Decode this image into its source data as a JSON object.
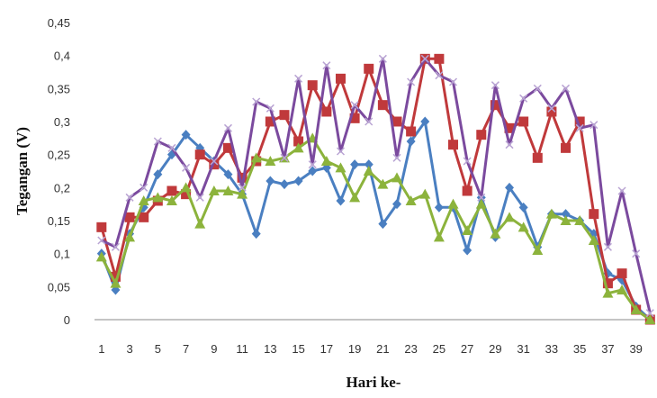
{
  "chart_data": {
    "type": "line",
    "xlabel": "Hari ke-",
    "ylabel": "Tegangan (V)",
    "ylim": [
      0,
      0.45
    ],
    "yticks": [
      "0",
      "0,05",
      "0,1",
      "0,15",
      "0,2",
      "0,25",
      "0,3",
      "0,35",
      "0,4",
      "0,45"
    ],
    "xticks": [
      "1",
      "3",
      "5",
      "7",
      "9",
      "11",
      "13",
      "15",
      "17",
      "19",
      "21",
      "23",
      "25",
      "27",
      "29",
      "31",
      "33",
      "35",
      "37",
      "39"
    ],
    "x": [
      1,
      2,
      3,
      4,
      5,
      6,
      7,
      8,
      9,
      10,
      11,
      12,
      13,
      14,
      15,
      16,
      17,
      18,
      19,
      20,
      21,
      22,
      23,
      24,
      25,
      26,
      27,
      28,
      29,
      30,
      31,
      32,
      33,
      34,
      35,
      36,
      37,
      38,
      39,
      40
    ],
    "grid": false,
    "legend": "none",
    "series": [
      {
        "color": "#4a7fc1",
        "marker": "diamond",
        "values": [
          0.1,
          0.045,
          0.13,
          0.17,
          0.22,
          0.25,
          0.28,
          0.26,
          0.24,
          0.22,
          0.19,
          0.13,
          0.21,
          0.205,
          0.21,
          0.225,
          0.23,
          0.18,
          0.235,
          0.235,
          0.145,
          0.175,
          0.27,
          0.3,
          0.17,
          0.17,
          0.105,
          0.185,
          0.125,
          0.2,
          0.17,
          0.11,
          0.16,
          0.16,
          0.15,
          0.13,
          0.07,
          0.06,
          0.02,
          0.0
        ]
      },
      {
        "color": "#c0393b",
        "marker": "square",
        "values": [
          0.14,
          0.065,
          0.155,
          0.155,
          0.18,
          0.195,
          0.19,
          0.25,
          0.235,
          0.26,
          0.215,
          0.24,
          0.3,
          0.31,
          0.27,
          0.355,
          0.315,
          0.365,
          0.305,
          0.38,
          0.325,
          0.3,
          0.285,
          0.395,
          0.395,
          0.265,
          0.195,
          0.28,
          0.325,
          0.29,
          0.3,
          0.245,
          0.315,
          0.26,
          0.3,
          0.16,
          0.055,
          0.07,
          0.015,
          0.0
        ]
      },
      {
        "color": "#8cb33c",
        "marker": "triangle",
        "values": [
          0.095,
          0.055,
          0.125,
          0.18,
          0.185,
          0.18,
          0.2,
          0.145,
          0.195,
          0.195,
          0.19,
          0.245,
          0.24,
          0.245,
          0.26,
          0.275,
          0.24,
          0.23,
          0.185,
          0.225,
          0.205,
          0.215,
          0.18,
          0.19,
          0.125,
          0.175,
          0.135,
          0.175,
          0.13,
          0.155,
          0.14,
          0.105,
          0.16,
          0.15,
          0.15,
          0.12,
          0.04,
          0.045,
          0.015,
          0.0
        ]
      },
      {
        "color": "#7b4a9e",
        "marker": "x",
        "values": [
          0.12,
          0.11,
          0.185,
          0.2,
          0.27,
          0.26,
          0.23,
          0.185,
          0.24,
          0.29,
          0.2,
          0.33,
          0.32,
          0.245,
          0.365,
          0.235,
          0.385,
          0.255,
          0.325,
          0.3,
          0.395,
          0.245,
          0.36,
          0.395,
          0.37,
          0.36,
          0.24,
          0.185,
          0.355,
          0.265,
          0.335,
          0.35,
          0.32,
          0.35,
          0.29,
          0.295,
          0.11,
          0.195,
          0.1,
          0.01
        ]
      }
    ]
  }
}
